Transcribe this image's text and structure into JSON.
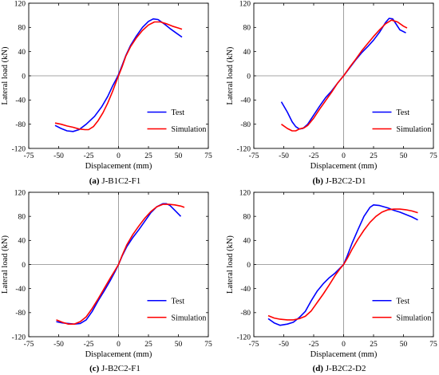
{
  "colors": {
    "test": "#0000ff",
    "simulation": "#ff0000",
    "axis": "#000000",
    "zero_line": "#888888"
  },
  "chart_data": [
    {
      "type": "line",
      "caption_letter": "(a)",
      "caption_text": "J-B1C2-F1",
      "xlabel": "Displacement (mm)",
      "ylabel": "Lateral load (kN)",
      "xlim": [
        -75,
        75
      ],
      "ylim": [
        -120,
        120
      ],
      "xticks": [
        -75,
        -50,
        -25,
        0,
        25,
        50,
        75
      ],
      "yticks": [
        -120,
        -80,
        -40,
        0,
        40,
        80,
        120
      ],
      "grid": false,
      "legend_position": "bottom-right",
      "series": [
        {
          "name": "Test",
          "color": "#0000ff",
          "x": [
            -53,
            -48,
            -43,
            -38,
            -33,
            -27,
            -20,
            -14,
            -9,
            -5,
            -2,
            0,
            3,
            6,
            10,
            15,
            20,
            25,
            29,
            33,
            38,
            43,
            48,
            53
          ],
          "y": [
            -82,
            -87,
            -91,
            -92,
            -89,
            -80,
            -67,
            -51,
            -34,
            -17,
            -6,
            2,
            17,
            33,
            50,
            66,
            80,
            90,
            94,
            93,
            86,
            78,
            71,
            64
          ]
        },
        {
          "name": "Simulation",
          "color": "#ff0000",
          "x": [
            -53,
            -48,
            -43,
            -38,
            -33,
            -28,
            -25,
            -21,
            -17,
            -13,
            -9,
            -5,
            -2,
            0,
            3,
            6,
            10,
            15,
            20,
            25,
            30,
            35,
            40,
            45,
            50,
            53
          ],
          "y": [
            -78,
            -80,
            -83,
            -85,
            -88,
            -89,
            -89,
            -84,
            -74,
            -61,
            -45,
            -26,
            -10,
            0,
            15,
            32,
            48,
            63,
            75,
            84,
            89,
            89,
            86,
            82,
            79,
            77
          ]
        }
      ]
    },
    {
      "type": "line",
      "caption_letter": "(b)",
      "caption_text": "J-B2C2-D1",
      "xlabel": "Displacement (mm)",
      "ylabel": "Lateral load (kN)",
      "xlim": [
        -75,
        75
      ],
      "ylim": [
        -120,
        120
      ],
      "xticks": [
        -75,
        -50,
        -25,
        0,
        25,
        50,
        75
      ],
      "yticks": [
        -120,
        -80,
        -40,
        0,
        40,
        80,
        120
      ],
      "grid": false,
      "legend_position": "bottom-right",
      "series": [
        {
          "name": "Test",
          "color": "#0000ff",
          "x": [
            -52,
            -47,
            -43,
            -40,
            -37,
            -34,
            -30,
            -25,
            -20,
            -15,
            -10,
            -5,
            0,
            5,
            10,
            15,
            20,
            25,
            30,
            35,
            38,
            41,
            44,
            47,
            52
          ],
          "y": [
            -43,
            -60,
            -76,
            -84,
            -88,
            -87,
            -80,
            -65,
            -50,
            -36,
            -25,
            -12,
            0,
            13,
            26,
            38,
            48,
            59,
            72,
            88,
            95,
            94,
            85,
            76,
            71
          ]
        },
        {
          "name": "Simulation",
          "color": "#ff0000",
          "x": [
            -52,
            -47,
            -43,
            -40,
            -37,
            -33,
            -30,
            -25,
            -20,
            -15,
            -10,
            -5,
            0,
            5,
            10,
            15,
            20,
            25,
            30,
            35,
            40,
            45,
            50,
            53
          ],
          "y": [
            -80,
            -87,
            -91,
            -91,
            -88,
            -86,
            -82,
            -70,
            -55,
            -41,
            -27,
            -12,
            0,
            14,
            27,
            41,
            53,
            65,
            76,
            86,
            92,
            89,
            82,
            79
          ]
        }
      ]
    },
    {
      "type": "line",
      "caption_letter": "(c)",
      "caption_text": "J-B2C2-F1",
      "xlabel": "Displacement (mm)",
      "ylabel": "Lateral load (kN)",
      "xlim": [
        -75,
        75
      ],
      "ylim": [
        -120,
        120
      ],
      "xticks": [
        -75,
        -50,
        -25,
        0,
        25,
        50,
        75
      ],
      "yticks": [
        -120,
        -80,
        -40,
        0,
        40,
        80,
        120
      ],
      "grid": false,
      "legend_position": "bottom-right",
      "series": [
        {
          "name": "Test",
          "color": "#0000ff",
          "x": [
            -52,
            -47,
            -42,
            -37,
            -32,
            -27,
            -22,
            -17,
            -12,
            -7,
            -3,
            0,
            3,
            7,
            12,
            17,
            22,
            27,
            32,
            37,
            40,
            43,
            48,
            52
          ],
          "y": [
            -95,
            -97,
            -98,
            -99,
            -98,
            -92,
            -78,
            -60,
            -44,
            -27,
            -12,
            0,
            14,
            30,
            45,
            58,
            72,
            86,
            96,
            101,
            101,
            98,
            88,
            80
          ]
        },
        {
          "name": "Simulation",
          "color": "#ff0000",
          "x": [
            -52,
            -47,
            -42,
            -37,
            -32,
            -27,
            -22,
            -17,
            -12,
            -7,
            -3,
            0,
            3,
            7,
            12,
            17,
            22,
            27,
            32,
            37,
            42,
            47,
            52,
            55
          ],
          "y": [
            -92,
            -96,
            -99,
            -99,
            -95,
            -87,
            -73,
            -57,
            -40,
            -23,
            -10,
            0,
            15,
            33,
            50,
            64,
            77,
            88,
            96,
            100,
            100,
            99,
            97,
            95
          ]
        }
      ]
    },
    {
      "type": "line",
      "caption_letter": "(d)",
      "caption_text": "J-B2C2-D2",
      "xlabel": "Displacement (mm)",
      "ylabel": "Lateral load (kN)",
      "xlim": [
        -75,
        75
      ],
      "ylim": [
        -120,
        120
      ],
      "xticks": [
        -75,
        -50,
        -25,
        0,
        25,
        50,
        75
      ],
      "yticks": [
        -120,
        -80,
        -40,
        0,
        40,
        80,
        120
      ],
      "grid": false,
      "legend_position": "bottom-right",
      "series": [
        {
          "name": "Test",
          "color": "#0000ff",
          "x": [
            -63,
            -58,
            -53,
            -47,
            -42,
            -37,
            -32,
            -27,
            -22,
            -17,
            -12,
            -7,
            -3,
            0,
            3,
            7,
            12,
            17,
            22,
            25,
            30,
            37,
            42,
            47,
            52,
            57,
            62
          ],
          "y": [
            -90,
            -97,
            -101,
            -99,
            -96,
            -88,
            -78,
            -60,
            -44,
            -32,
            -22,
            -14,
            -6,
            0,
            14,
            35,
            58,
            80,
            95,
            99,
            98,
            94,
            90,
            87,
            83,
            79,
            74
          ]
        },
        {
          "name": "Simulation",
          "color": "#ff0000",
          "x": [
            -63,
            -58,
            -53,
            -47,
            -42,
            -37,
            -32,
            -27,
            -22,
            -17,
            -12,
            -7,
            -3,
            0,
            3,
            7,
            12,
            17,
            22,
            27,
            32,
            37,
            42,
            47,
            52,
            57,
            62
          ],
          "y": [
            -85,
            -89,
            -91,
            -92,
            -92,
            -90,
            -86,
            -77,
            -63,
            -49,
            -34,
            -18,
            -7,
            0,
            10,
            25,
            42,
            57,
            70,
            80,
            87,
            91,
            92,
            92,
            91,
            89,
            86
          ]
        }
      ]
    }
  ]
}
